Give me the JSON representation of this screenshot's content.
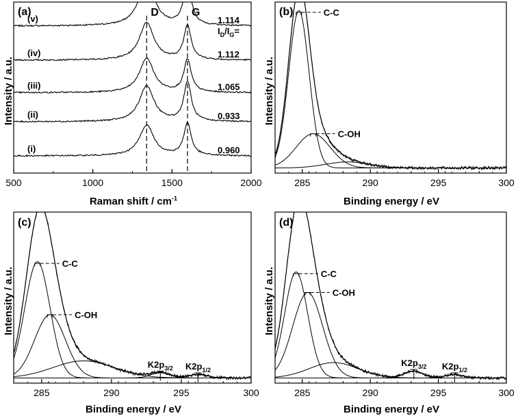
{
  "figure": {
    "raman_label": "Raman shift / cm",
    "raman_exp": "-1",
    "be_label": "Binding energy / eV",
    "intensity_label": "Intensity / a.u."
  },
  "chart_data": [
    {
      "panel": "(a)",
      "type": "line",
      "xlabel": "Raman shift / cm-1",
      "ylabel": "Intensity / a.u.",
      "xlim": [
        500,
        2000
      ],
      "xticks": [
        "500",
        "1000",
        "1500",
        "2000"
      ],
      "reference_lines": [
        {
          "label": "D",
          "x": 1340
        },
        {
          "label": "G",
          "x": 1598
        }
      ],
      "ratio_header": {
        "main": "I",
        "sub_d": "D",
        "slash": "/I",
        "sub_g": "G",
        "suffix": "="
      },
      "series": [
        {
          "name": "(v)",
          "ratio": "1.114",
          "baseline": 0.86,
          "peaks": [
            {
              "x": 1340,
              "h": 0.29
            },
            {
              "x": 1598,
              "h": 0.26
            }
          ]
        },
        {
          "name": "(iv)",
          "ratio": "1.112",
          "baseline": 0.66,
          "peaks": [
            {
              "x": 1340,
              "h": 0.22
            },
            {
              "x": 1598,
              "h": 0.2
            }
          ]
        },
        {
          "name": "(iii)",
          "ratio": "1.065",
          "baseline": 0.47,
          "peaks": [
            {
              "x": 1340,
              "h": 0.2
            },
            {
              "x": 1598,
              "h": 0.19
            }
          ]
        },
        {
          "name": "(ii)",
          "ratio": "0.933",
          "baseline": 0.3,
          "peaks": [
            {
              "x": 1340,
              "h": 0.21
            },
            {
              "x": 1598,
              "h": 0.23
            }
          ]
        },
        {
          "name": "(i)",
          "ratio": "0.960",
          "baseline": 0.1,
          "peaks": [
            {
              "x": 1340,
              "h": 0.18
            },
            {
              "x": 1598,
              "h": 0.19
            }
          ]
        }
      ]
    },
    {
      "panel": "(b)",
      "type": "line",
      "xlabel": "Binding energy / eV",
      "ylabel": "Intensity / a.u.",
      "xlim": [
        283,
        300
      ],
      "xticks": [
        "285",
        "290",
        "295",
        "300"
      ],
      "background": 0.03,
      "components": [
        {
          "name": "C-C",
          "center": 284.75,
          "height": 0.92,
          "width": 0.75
        },
        {
          "name": "C-OH",
          "center": 285.8,
          "height": 0.2,
          "width": 1.25
        },
        {
          "name": "",
          "center": 288.3,
          "height": 0.035,
          "width": 1.6
        }
      ],
      "annotations": [
        {
          "text": "C-C",
          "x": 284.75,
          "y": 0.94
        },
        {
          "text": "C-OH",
          "x": 285.8,
          "y": 0.23
        }
      ]
    },
    {
      "panel": "(c)",
      "type": "line",
      "xlabel": "Binding energy / eV",
      "ylabel": "Intensity / a.u.",
      "xlim": [
        283,
        300
      ],
      "xticks": [
        "285",
        "290",
        "295",
        "300"
      ],
      "background": 0.03,
      "components": [
        {
          "name": "C-C",
          "center": 284.7,
          "height": 0.68,
          "width": 0.9
        },
        {
          "name": "C-OH",
          "center": 285.6,
          "height": 0.37,
          "width": 1.1
        },
        {
          "name": "",
          "center": 288.0,
          "height": 0.1,
          "width": 2.2
        },
        {
          "name": "K2p3/2",
          "center": 293.5,
          "height": 0.03,
          "width": 0.7
        },
        {
          "name": "K2p1/2",
          "center": 296.2,
          "height": 0.02,
          "width": 0.7
        }
      ],
      "annotations": [
        {
          "text": "C-C",
          "x": 284.7,
          "y": 0.7
        },
        {
          "text": "C-OH",
          "x": 285.6,
          "y": 0.4
        }
      ],
      "k_peaks": [
        {
          "main": "K2p",
          "sub": "3/2",
          "x": 293.5,
          "y": 0.07
        },
        {
          "main": "K2p",
          "sub": "1/2",
          "x": 296.2,
          "y": 0.06
        }
      ]
    },
    {
      "panel": "(d)",
      "type": "line",
      "xlabel": "Binding energy / eV",
      "ylabel": "Intensity / a.u.",
      "xlim": [
        283,
        300
      ],
      "xticks": [
        "285",
        "290",
        "295",
        "300"
      ],
      "background": 0.03,
      "components": [
        {
          "name": "C-C",
          "center": 284.55,
          "height": 0.62,
          "width": 0.85
        },
        {
          "name": "C-OH",
          "center": 285.4,
          "height": 0.5,
          "width": 1.1
        },
        {
          "name": "",
          "center": 287.3,
          "height": 0.09,
          "width": 1.8
        },
        {
          "name": "K2p3/2",
          "center": 293.2,
          "height": 0.04,
          "width": 0.7
        },
        {
          "name": "K2p1/2",
          "center": 296.2,
          "height": 0.02,
          "width": 0.7
        }
      ],
      "annotations": [
        {
          "text": "C-C",
          "x": 284.55,
          "y": 0.64
        },
        {
          "text": "C-OH",
          "x": 285.4,
          "y": 0.53
        }
      ],
      "k_peaks": [
        {
          "main": "K2p",
          "sub": "3/2",
          "x": 293.2,
          "y": 0.08
        },
        {
          "main": "K2p",
          "sub": "1/2",
          "x": 296.2,
          "y": 0.06
        }
      ]
    }
  ]
}
